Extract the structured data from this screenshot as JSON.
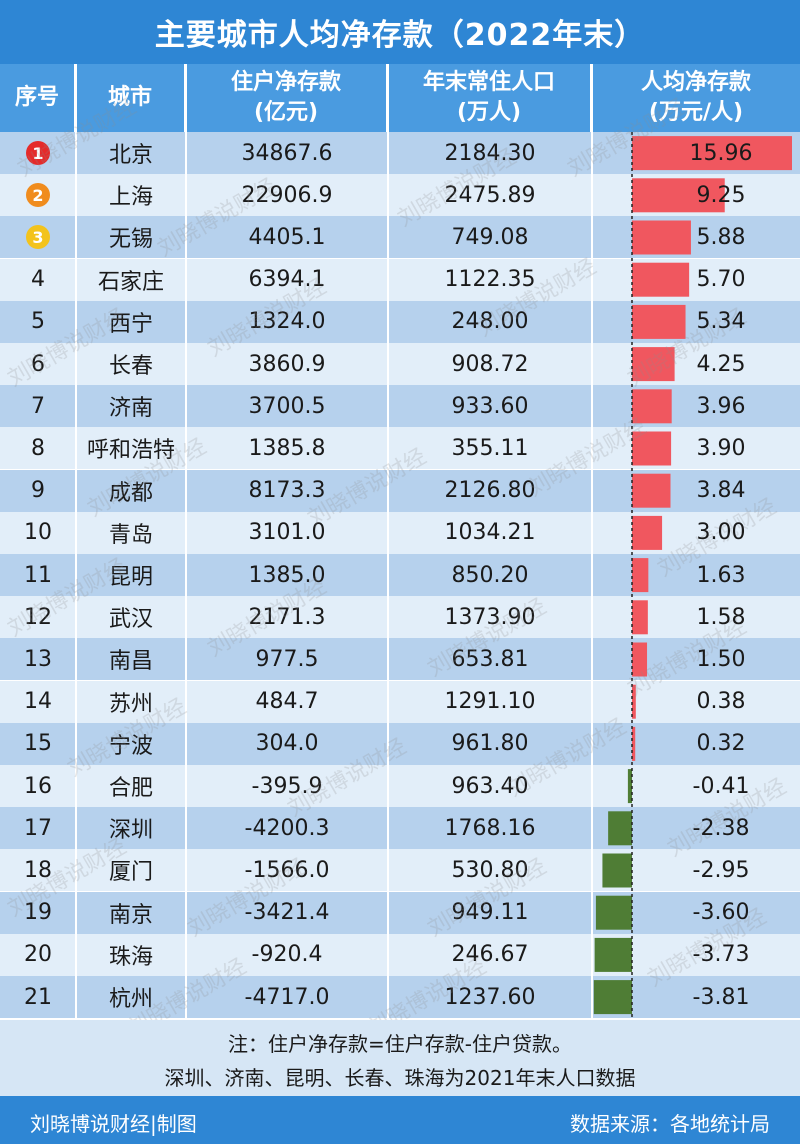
{
  "title": "主要城市人均净存款（2022年末）",
  "headers": {
    "rank": "序号",
    "city": "城市",
    "deposit_line1": "住户净存款",
    "deposit_line2": "(亿元)",
    "pop_line1": "年末常住人口",
    "pop_line2": "(万人)",
    "percap_line1": "人均净存款",
    "percap_line2": "(万元/人)"
  },
  "chart_data": {
    "type": "table",
    "columns": [
      "序号",
      "城市",
      "住户净存款(亿元)",
      "年末常住人口(万人)",
      "人均净存款(万元/人)"
    ],
    "rows": [
      {
        "rank": "1",
        "city": "北京",
        "deposit": "34867.6",
        "population": "2184.30",
        "per_capita": "15.96",
        "value": 15.96
      },
      {
        "rank": "2",
        "city": "上海",
        "deposit": "22906.9",
        "population": "2475.89",
        "per_capita": "9.25",
        "value": 9.25
      },
      {
        "rank": "3",
        "city": "无锡",
        "deposit": "4405.1",
        "population": "749.08",
        "per_capita": "5.88",
        "value": 5.88
      },
      {
        "rank": "4",
        "city": "石家庄",
        "deposit": "6394.1",
        "population": "1122.35",
        "per_capita": "5.70",
        "value": 5.7
      },
      {
        "rank": "5",
        "city": "西宁",
        "deposit": "1324.0",
        "population": "248.00",
        "per_capita": "5.34",
        "value": 5.34
      },
      {
        "rank": "6",
        "city": "长春",
        "deposit": "3860.9",
        "population": "908.72",
        "per_capita": "4.25",
        "value": 4.25
      },
      {
        "rank": "7",
        "city": "济南",
        "deposit": "3700.5",
        "population": "933.60",
        "per_capita": "3.96",
        "value": 3.96
      },
      {
        "rank": "8",
        "city": "呼和浩特",
        "deposit": "1385.8",
        "population": "355.11",
        "per_capita": "3.90",
        "value": 3.9
      },
      {
        "rank": "9",
        "city": "成都",
        "deposit": "8173.3",
        "population": "2126.80",
        "per_capita": "3.84",
        "value": 3.84
      },
      {
        "rank": "10",
        "city": "青岛",
        "deposit": "3101.0",
        "population": "1034.21",
        "per_capita": "3.00",
        "value": 3.0
      },
      {
        "rank": "11",
        "city": "昆明",
        "deposit": "1385.0",
        "population": "850.20",
        "per_capita": "1.63",
        "value": 1.63
      },
      {
        "rank": "12",
        "city": "武汉",
        "deposit": "2171.3",
        "population": "1373.90",
        "per_capita": "1.58",
        "value": 1.58
      },
      {
        "rank": "13",
        "city": "南昌",
        "deposit": "977.5",
        "population": "653.81",
        "per_capita": "1.50",
        "value": 1.5
      },
      {
        "rank": "14",
        "city": "苏州",
        "deposit": "484.7",
        "population": "1291.10",
        "per_capita": "0.38",
        "value": 0.38
      },
      {
        "rank": "15",
        "city": "宁波",
        "deposit": "304.0",
        "population": "961.80",
        "per_capita": "0.32",
        "value": 0.32
      },
      {
        "rank": "16",
        "city": "合肥",
        "deposit": "-395.9",
        "population": "963.40",
        "per_capita": "-0.41",
        "value": -0.41
      },
      {
        "rank": "17",
        "city": "深圳",
        "deposit": "-4200.3",
        "population": "1768.16",
        "per_capita": "-2.38",
        "value": -2.38
      },
      {
        "rank": "18",
        "city": "厦门",
        "deposit": "-1566.0",
        "population": "530.80",
        "per_capita": "-2.95",
        "value": -2.95
      },
      {
        "rank": "19",
        "city": "南京",
        "deposit": "-3421.4",
        "population": "949.11",
        "per_capita": "-3.60",
        "value": -3.6
      },
      {
        "rank": "20",
        "city": "珠海",
        "deposit": "-920.4",
        "population": "246.67",
        "per_capita": "-3.73",
        "value": -3.73
      },
      {
        "rank": "21",
        "city": "杭州",
        "deposit": "-4717.0",
        "population": "1237.60",
        "per_capita": "-3.81",
        "value": -3.81
      }
    ],
    "bar_scale_max": 15.96
  },
  "colors": {
    "title_bg": "#2e86d4",
    "header_bg": "#4a9be0",
    "row_odd": "#b6d1ed",
    "row_even": "#e2eef9",
    "positive_bar": "#f0575f",
    "negative_bar": "#4f7d35",
    "badge_1": "#e52a2a",
    "badge_2": "#f08c1e",
    "badge_3": "#f3c31c"
  },
  "notes": {
    "line1": "注：住户净存款=住户存款-住户贷款。",
    "line2": "深圳、济南、昆明、长春、珠海为2021年末人口数据"
  },
  "footer": {
    "left": "刘晓博说财经|制图",
    "right": "数据来源：各地统计局"
  },
  "watermark": "刘晓博说财经"
}
